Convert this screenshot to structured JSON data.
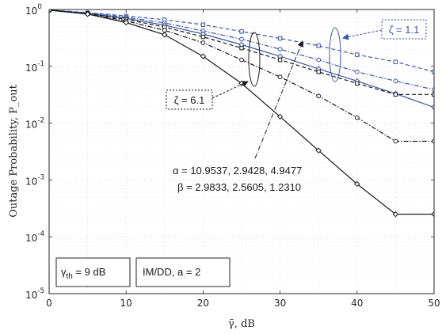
{
  "chart_data": {
    "type": "line",
    "xlabel": "γ̄, dB",
    "ylabel": "Outage Probability, P_out",
    "xlim": [
      0,
      50
    ],
    "ylim": [
      1e-05,
      1
    ],
    "yscale": "log",
    "grid": true,
    "x_ticks": [
      "0",
      "10",
      "20",
      "30",
      "40",
      "50"
    ],
    "y_ticks": [
      {
        "base": "10",
        "exp": "0"
      },
      {
        "base": "10",
        "exp": "-1"
      },
      {
        "base": "10",
        "exp": "-2"
      },
      {
        "base": "10",
        "exp": "-3"
      },
      {
        "base": "10",
        "exp": "-4"
      },
      {
        "base": "10",
        "exp": "-5"
      }
    ],
    "colors": {
      "blue": "#3856a6",
      "black": "#1a1a1a"
    },
    "x": [
      0,
      5,
      10,
      15,
      20,
      25,
      30,
      35,
      40,
      45,
      50
    ],
    "series": [
      {
        "color": "blue",
        "style": "dashed",
        "marker": "square",
        "values": [
          0.98,
          0.88,
          0.77,
          0.66,
          0.54,
          0.41,
          0.31,
          0.23,
          0.16,
          0.12,
          0.08
        ]
      },
      {
        "color": "blue",
        "style": "dashdot",
        "marker": "circle",
        "values": [
          0.98,
          0.87,
          0.73,
          0.58,
          0.42,
          0.3,
          0.2,
          0.13,
          0.08,
          0.055,
          0.039
        ]
      },
      {
        "color": "blue",
        "style": "solid",
        "marker": "diamond",
        "values": [
          0.98,
          0.86,
          0.7,
          0.53,
          0.37,
          0.24,
          0.15,
          0.09,
          0.055,
          0.033,
          0.019
        ]
      },
      {
        "color": "black",
        "style": "dashed",
        "marker": "square",
        "values": [
          0.97,
          0.85,
          0.67,
          0.49,
          0.33,
          0.21,
          0.13,
          0.08,
          0.05,
          0.032,
          0.032
        ]
      },
      {
        "color": "black",
        "style": "dashdot",
        "marker": "circle",
        "values": [
          0.97,
          0.84,
          0.63,
          0.43,
          0.26,
          0.13,
          0.065,
          0.03,
          0.0125,
          0.0048,
          0.0048
        ]
      },
      {
        "color": "black",
        "style": "solid",
        "marker": "diamond",
        "values": [
          0.97,
          0.83,
          0.59,
          0.36,
          0.15,
          0.05,
          0.013,
          0.0033,
          0.00085,
          0.00025,
          0.00025
        ]
      }
    ],
    "annotations": {
      "zeta_blue": "ζ = 1.1",
      "zeta_black": "ζ = 6.1",
      "alpha": "α = 10.9537, 2.9428, 4.9477",
      "beta": "β = 2.9833, 2.5605, 1.2310",
      "gamma_th_symbol": "γ",
      "gamma_th_sub": "th",
      "gamma_th_value": " = 9 dB",
      "imdd": "IM/DD, a = 2"
    }
  }
}
